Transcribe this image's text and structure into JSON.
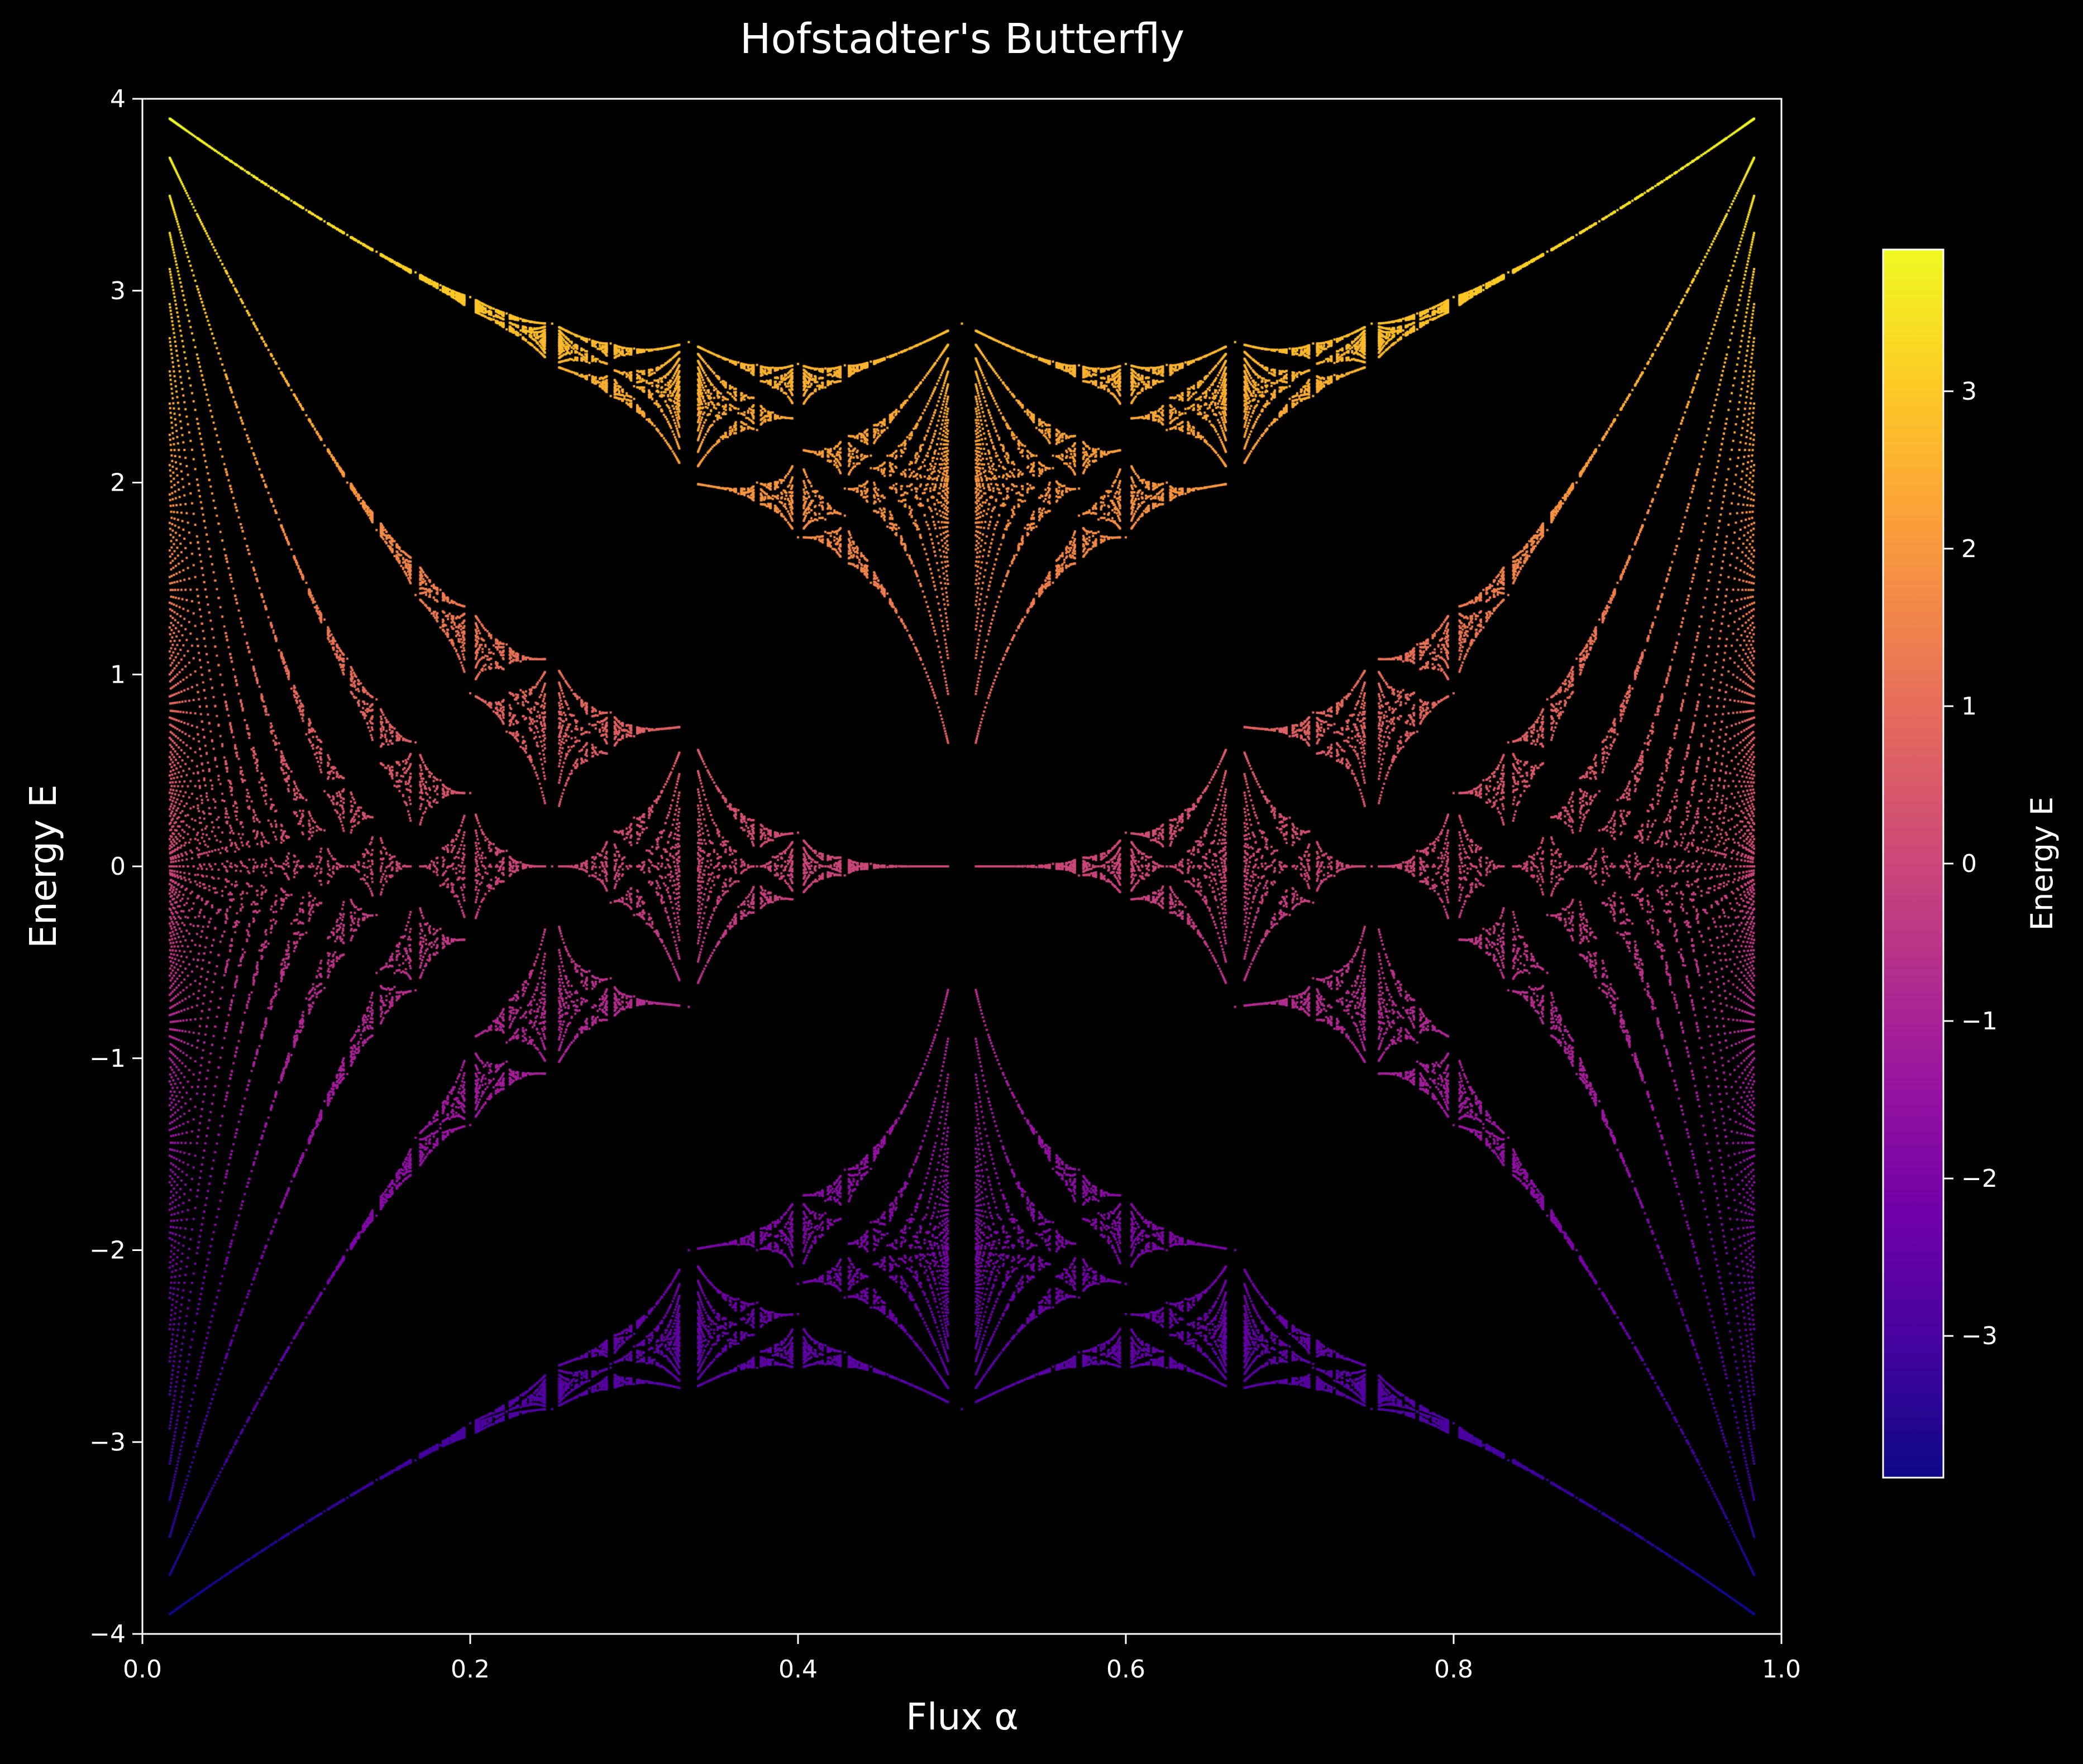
{
  "chart_data": {
    "type": "scatter",
    "title": "Hofstadter's Butterfly",
    "xlabel": "Flux α",
    "ylabel": "Energy E",
    "xlim": [
      0.0,
      1.0
    ],
    "ylim": [
      -4,
      4
    ],
    "x_ticks": [
      0.0,
      0.2,
      0.4,
      0.6,
      0.8,
      1.0
    ],
    "x_tick_labels": [
      "0.0",
      "0.2",
      "0.4",
      "0.6",
      "0.8",
      "1.0"
    ],
    "y_ticks": [
      -4,
      -3,
      -2,
      -1,
      0,
      1,
      2,
      3,
      4
    ],
    "y_tick_labels": [
      "−4",
      "−3",
      "−2",
      "−1",
      "0",
      "1",
      "2",
      "3",
      "4"
    ],
    "grid": false,
    "background": "#000000",
    "colormap": "plasma",
    "color_encodes": "energy",
    "model": "Harper equation spectrum, flux α = p/q",
    "series": [
      {
        "points_from": "eigenvalues of Harper matrix for each rational α = p/q",
        "alpha_range": [
          0.0167,
          0.9833
        ],
        "energy_range": [
          -3.9,
          3.9
        ]
      }
    ],
    "colorbar": {
      "label": "Energy E",
      "range": [
        -3.9,
        3.9
      ],
      "ticks": [
        -3,
        -2,
        -1,
        0,
        1,
        2,
        3
      ],
      "tick_labels": [
        "−3",
        "−2",
        "−1",
        "0",
        "1",
        "2",
        "3"
      ],
      "colors": [
        "#0d0887",
        "#46039f",
        "#7201a8",
        "#9c179e",
        "#bd3786",
        "#d8576b",
        "#ed7953",
        "#fb9f3a",
        "#fdca26",
        "#f0f921"
      ]
    }
  }
}
